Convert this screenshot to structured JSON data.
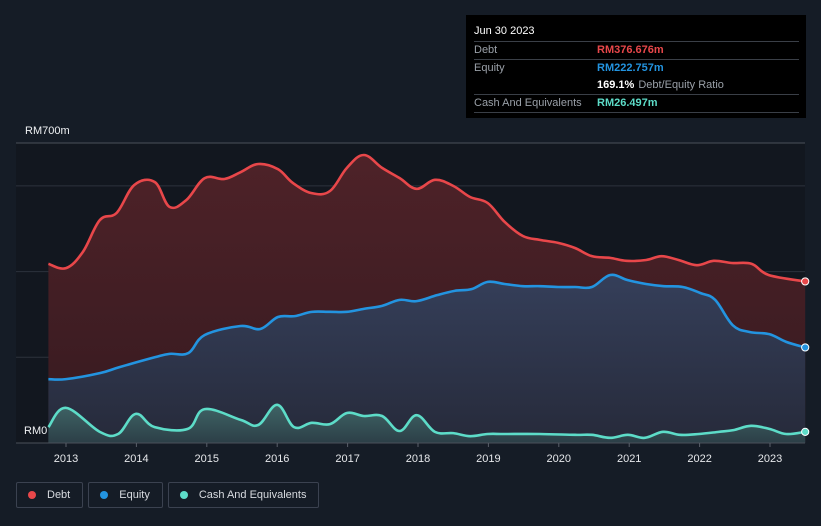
{
  "tooltip": {
    "date": "Jun 30 2023",
    "rows": {
      "debt": {
        "label": "Debt",
        "value": "RM376.676m"
      },
      "equity": {
        "label": "Equity",
        "value": "RM222.757m"
      },
      "ratio": {
        "value": "169.1%",
        "label": "Debt/Equity Ratio"
      },
      "cash": {
        "label": "Cash And Equivalents",
        "value": "RM26.497m"
      }
    }
  },
  "legend": [
    {
      "label": "Debt",
      "color": "#e8474a"
    },
    {
      "label": "Equity",
      "color": "#2394e0"
    },
    {
      "label": "Cash And Equivalents",
      "color": "#5ddcc8"
    }
  ],
  "chart_data": {
    "type": "area",
    "title": "",
    "xlabel": "",
    "ylabel": "",
    "y_top_label": "RM700m",
    "y_bottom_label": "RM0",
    "ylim": [
      0,
      700
    ],
    "xlim": [
      2012.75,
      2023.5
    ],
    "grid": true,
    "legend_position": "bottom-left",
    "x_ticks": [
      "2013",
      "2014",
      "2015",
      "2016",
      "2017",
      "2018",
      "2019",
      "2020",
      "2021",
      "2022",
      "2023"
    ],
    "x_tick_values": [
      2013,
      2014,
      2015,
      2016,
      2017,
      2018,
      2019,
      2020,
      2021,
      2022,
      2023
    ],
    "y_grid_values": [
      0,
      200,
      400,
      600,
      700
    ],
    "series": [
      {
        "name": "Debt",
        "color": "#e8474a",
        "points": [
          [
            2012.75,
            418
          ],
          [
            2013.0,
            408
          ],
          [
            2013.24,
            446
          ],
          [
            2013.48,
            520
          ],
          [
            2013.72,
            537
          ],
          [
            2013.97,
            602
          ],
          [
            2014.26,
            609
          ],
          [
            2014.47,
            551
          ],
          [
            2014.71,
            567
          ],
          [
            2014.97,
            618
          ],
          [
            2015.25,
            616
          ],
          [
            2015.48,
            632
          ],
          [
            2015.73,
            651
          ],
          [
            2016.01,
            639
          ],
          [
            2016.22,
            607
          ],
          [
            2016.49,
            583
          ],
          [
            2016.75,
            588
          ],
          [
            2016.99,
            642
          ],
          [
            2017.23,
            672
          ],
          [
            2017.49,
            642
          ],
          [
            2017.74,
            618
          ],
          [
            2017.98,
            593
          ],
          [
            2018.24,
            614
          ],
          [
            2018.5,
            600
          ],
          [
            2018.74,
            574
          ],
          [
            2018.99,
            560
          ],
          [
            2019.23,
            516
          ],
          [
            2019.49,
            483
          ],
          [
            2019.73,
            474
          ],
          [
            2019.99,
            467
          ],
          [
            2020.23,
            455
          ],
          [
            2020.47,
            436
          ],
          [
            2020.73,
            432
          ],
          [
            2020.96,
            425
          ],
          [
            2021.24,
            427
          ],
          [
            2021.46,
            436
          ],
          [
            2021.7,
            427
          ],
          [
            2021.96,
            415
          ],
          [
            2022.2,
            425
          ],
          [
            2022.46,
            420
          ],
          [
            2022.74,
            418
          ],
          [
            2022.98,
            392
          ],
          [
            2023.5,
            377
          ]
        ]
      },
      {
        "name": "Equity",
        "color": "#2394e0",
        "points": [
          [
            2012.75,
            149
          ],
          [
            2013.0,
            149
          ],
          [
            2013.48,
            163
          ],
          [
            2013.76,
            177
          ],
          [
            2014.26,
            200
          ],
          [
            2014.47,
            208
          ],
          [
            2014.74,
            210
          ],
          [
            2014.97,
            252
          ],
          [
            2015.48,
            273
          ],
          [
            2015.76,
            266
          ],
          [
            2016.01,
            294
          ],
          [
            2016.25,
            296
          ],
          [
            2016.49,
            306
          ],
          [
            2016.75,
            306
          ],
          [
            2016.99,
            306
          ],
          [
            2017.23,
            313
          ],
          [
            2017.49,
            320
          ],
          [
            2017.74,
            334
          ],
          [
            2017.98,
            331
          ],
          [
            2018.27,
            345
          ],
          [
            2018.52,
            355
          ],
          [
            2018.76,
            359
          ],
          [
            2018.99,
            376
          ],
          [
            2019.23,
            371
          ],
          [
            2019.49,
            366
          ],
          [
            2019.73,
            366
          ],
          [
            2019.99,
            364
          ],
          [
            2020.23,
            364
          ],
          [
            2020.47,
            364
          ],
          [
            2020.73,
            392
          ],
          [
            2020.98,
            380
          ],
          [
            2021.24,
            371
          ],
          [
            2021.49,
            366
          ],
          [
            2021.76,
            364
          ],
          [
            2022.01,
            350
          ],
          [
            2022.22,
            334
          ],
          [
            2022.47,
            275
          ],
          [
            2022.71,
            259
          ],
          [
            2022.99,
            254
          ],
          [
            2023.23,
            236
          ],
          [
            2023.5,
            223
          ]
        ]
      },
      {
        "name": "Cash And Equivalents",
        "color": "#5ddcc8",
        "points": [
          [
            2012.75,
            37
          ],
          [
            2013.0,
            82
          ],
          [
            2013.48,
            26
          ],
          [
            2013.74,
            21
          ],
          [
            2013.99,
            68
          ],
          [
            2014.26,
            37
          ],
          [
            2014.73,
            33
          ],
          [
            2014.97,
            79
          ],
          [
            2015.48,
            54
          ],
          [
            2015.73,
            42
          ],
          [
            2016.0,
            89
          ],
          [
            2016.24,
            37
          ],
          [
            2016.49,
            47
          ],
          [
            2016.75,
            44
          ],
          [
            2016.99,
            70
          ],
          [
            2017.23,
            63
          ],
          [
            2017.49,
            63
          ],
          [
            2017.74,
            28
          ],
          [
            2017.98,
            65
          ],
          [
            2018.24,
            26
          ],
          [
            2018.5,
            23
          ],
          [
            2018.74,
            16
          ],
          [
            2018.99,
            21
          ],
          [
            2019.23,
            21
          ],
          [
            2019.73,
            21
          ],
          [
            2020.23,
            19
          ],
          [
            2020.47,
            19
          ],
          [
            2020.73,
            12
          ],
          [
            2020.98,
            19
          ],
          [
            2021.22,
            12
          ],
          [
            2021.48,
            26
          ],
          [
            2021.72,
            19
          ],
          [
            2021.99,
            21
          ],
          [
            2022.27,
            26
          ],
          [
            2022.48,
            30
          ],
          [
            2022.73,
            40
          ],
          [
            2022.99,
            33
          ],
          [
            2023.23,
            21
          ],
          [
            2023.5,
            26
          ]
        ]
      }
    ]
  }
}
